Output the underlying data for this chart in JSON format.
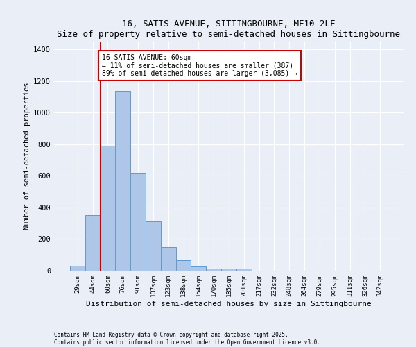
{
  "title": "16, SATIS AVENUE, SITTINGBOURNE, ME10 2LF",
  "subtitle": "Size of property relative to semi-detached houses in Sittingbourne",
  "xlabel": "Distribution of semi-detached houses by size in Sittingbourne",
  "ylabel": "Number of semi-detached properties",
  "categories": [
    "29sqm",
    "44sqm",
    "60sqm",
    "76sqm",
    "91sqm",
    "107sqm",
    "123sqm",
    "138sqm",
    "154sqm",
    "170sqm",
    "185sqm",
    "201sqm",
    "217sqm",
    "232sqm",
    "248sqm",
    "264sqm",
    "279sqm",
    "295sqm",
    "311sqm",
    "326sqm",
    "342sqm"
  ],
  "values": [
    30,
    350,
    790,
    1140,
    620,
    310,
    150,
    65,
    25,
    15,
    12,
    15,
    0,
    0,
    0,
    0,
    0,
    0,
    0,
    0,
    0
  ],
  "bar_color": "#aec6e8",
  "bar_edge_color": "#5b9bd5",
  "vline_color": "#cc0000",
  "annotation_text": "16 SATIS AVENUE: 60sqm\n← 11% of semi-detached houses are smaller (387)\n89% of semi-detached houses are larger (3,085) →",
  "annotation_box_color": "#cc0000",
  "ylim": [
    0,
    1450
  ],
  "yticks": [
    0,
    200,
    400,
    600,
    800,
    1000,
    1200,
    1400
  ],
  "background_color": "#eaeff7",
  "plot_bg_color": "#eaeff7",
  "grid_color": "#ffffff",
  "footer_line1": "Contains HM Land Registry data © Crown copyright and database right 2025.",
  "footer_line2": "Contains public sector information licensed under the Open Government Licence v3.0."
}
